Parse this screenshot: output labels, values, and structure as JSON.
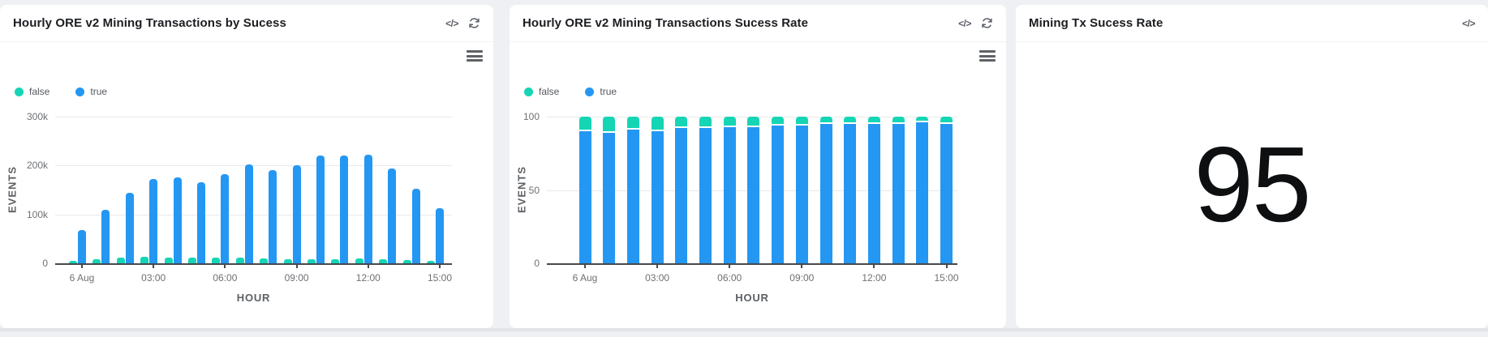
{
  "page": {
    "background_color": "#eef0f3",
    "bottom_strip_color": "#e1e4e8"
  },
  "colors": {
    "series_false": "#15d5b5",
    "series_true": "#2497f3",
    "axis_text": "#6e7074",
    "title_text": "#1b1d21"
  },
  "panels": [
    {
      "title": "Hourly ORE v2 Mining Transactions by Sucess",
      "toolbar": {
        "code_icon": "</>",
        "refresh_icon": "refresh"
      },
      "legend": [
        {
          "label": "false"
        },
        {
          "label": "true"
        }
      ]
    },
    {
      "title": "Hourly ORE v2 Mining Transactions Sucess Rate",
      "toolbar": {
        "code_icon": "</>",
        "refresh_icon": "refresh"
      },
      "legend": [
        {
          "label": "false"
        },
        {
          "label": "true"
        }
      ]
    },
    {
      "title": "Mining Tx Sucess Rate",
      "toolbar": {
        "code_icon": "</>"
      }
    }
  ],
  "chart_data": [
    {
      "type": "bar",
      "title": "Hourly ORE v2 Mining Transactions by Sucess",
      "categories": [
        "6 Aug 00:00",
        "01:00",
        "02:00",
        "03:00",
        "04:00",
        "05:00",
        "06:00",
        "07:00",
        "08:00",
        "09:00",
        "10:00",
        "11:00",
        "12:00",
        "13:00",
        "14:00",
        "15:00"
      ],
      "series": [
        {
          "name": "false",
          "color": "#15d5b5",
          "values": [
            5000,
            9000,
            11000,
            14000,
            11000,
            11000,
            12000,
            11000,
            10000,
            9000,
            8000,
            8000,
            10000,
            8000,
            6000,
            5000
          ]
        },
        {
          "name": "true",
          "color": "#2497f3",
          "values": [
            68000,
            110000,
            145000,
            173000,
            176000,
            165000,
            182000,
            203000,
            190000,
            201000,
            220000,
            220000,
            222000,
            194000,
            152000,
            113000
          ]
        }
      ],
      "xlabel": "HOUR",
      "ylabel": "EVENTS",
      "ymax": 300000,
      "ytick_values": [
        0,
        100000,
        200000,
        300000
      ],
      "ytick_labels": [
        "0",
        "100k",
        "200k",
        "300k"
      ],
      "xtick_indices": [
        0,
        3,
        6,
        9,
        12,
        15
      ],
      "xtick_labels": [
        "6 Aug",
        "03:00",
        "06:00",
        "09:00",
        "12:00",
        "15:00"
      ],
      "legend_position": "top-left",
      "grid": true
    },
    {
      "type": "stacked-bar",
      "title": "Hourly ORE v2 Mining Transactions Sucess Rate",
      "categories": [
        "6 Aug 00:00",
        "01:00",
        "02:00",
        "03:00",
        "04:00",
        "05:00",
        "06:00",
        "07:00",
        "08:00",
        "09:00",
        "10:00",
        "11:00",
        "12:00",
        "13:00",
        "14:00",
        "15:00"
      ],
      "series": [
        {
          "name": "false",
          "color": "#15d5b5",
          "values": [
            10,
            11,
            9,
            10,
            8,
            8,
            7,
            7,
            6,
            6,
            5,
            5,
            5,
            5,
            4,
            5
          ]
        },
        {
          "name": "true",
          "color": "#2497f3",
          "values": [
            90,
            89,
            91,
            90,
            92,
            92,
            93,
            93,
            94,
            94,
            95,
            95,
            95,
            95,
            96,
            95
          ]
        }
      ],
      "xlabel": "HOUR",
      "ylabel": "EVENTS",
      "ymax": 100,
      "ytick_values": [
        0,
        50,
        100
      ],
      "ytick_labels": [
        "0",
        "50",
        "100"
      ],
      "xtick_indices": [
        0,
        3,
        6,
        9,
        12,
        15
      ],
      "xtick_labels": [
        "6 Aug",
        "03:00",
        "06:00",
        "09:00",
        "12:00",
        "15:00"
      ],
      "legend_position": "top-left",
      "grid": true
    },
    {
      "type": "stat",
      "title": "Mining Tx Sucess Rate",
      "value": 95
    }
  ]
}
